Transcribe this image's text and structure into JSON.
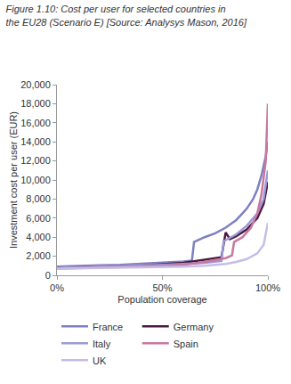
{
  "chart_data": {
    "type": "line",
    "title": "Figure 1.10: Cost per user for selected countries in the EU28 (Scenario E) [Source: Analysys Mason, 2016]",
    "x_label": "Population coverage",
    "y_label": "Investment cost per user (EUR)",
    "xlim": [
      0,
      100
    ],
    "xticks": [
      {
        "value": 0,
        "label": "0%"
      },
      {
        "value": 50,
        "label": "50%"
      },
      {
        "value": 100,
        "label": "100%"
      }
    ],
    "ylim": [
      0,
      20000
    ],
    "yticks": [
      0,
      {
        "value": 2000,
        "label": "2,000"
      },
      {
        "value": 4000,
        "label": "4,000"
      },
      {
        "value": 6000,
        "label": "6,000"
      },
      {
        "value": 8000,
        "label": "8,000"
      },
      {
        "value": 10000,
        "label": "10,000"
      },
      {
        "value": 12000,
        "label": "12,000"
      },
      {
        "value": 14000,
        "label": "14,000"
      },
      {
        "value": 16000,
        "label": "16,000"
      },
      {
        "value": 18000,
        "label": "18,000"
      },
      {
        "value": 20000,
        "label": "20,000"
      }
    ],
    "grid": false,
    "legend": "bottom",
    "series": [
      {
        "name": "France",
        "color": "#7f80c2",
        "x": [
          0,
          10,
          20,
          30,
          40,
          50,
          60,
          64,
          65,
          70,
          75,
          80,
          85,
          88,
          90,
          93,
          95,
          97,
          99,
          100
        ],
        "values": [
          900,
          1000,
          1050,
          1100,
          1200,
          1300,
          1450,
          1550,
          3500,
          4000,
          4400,
          5000,
          5800,
          6500,
          7000,
          8000,
          9000,
          10500,
          12500,
          14000
        ]
      },
      {
        "name": "Germany",
        "color": "#4a1942",
        "x": [
          0,
          20,
          40,
          60,
          70,
          78,
          80,
          82,
          85,
          90,
          95,
          98,
          100
        ],
        "values": [
          800,
          900,
          1000,
          1300,
          1600,
          1900,
          4500,
          3800,
          4100,
          4800,
          6000,
          7500,
          9800
        ]
      },
      {
        "name": "Italy",
        "color": "#9b9ad6",
        "x": [
          0,
          10,
          20,
          30,
          40,
          50,
          60,
          70,
          78,
          79,
          80,
          85,
          90,
          95,
          98,
          100
        ],
        "values": [
          800,
          850,
          900,
          950,
          1000,
          1100,
          1200,
          1300,
          1500,
          3500,
          3700,
          4300,
          5200,
          6500,
          8000,
          11000
        ]
      },
      {
        "name": "Spain",
        "color": "#c8789f",
        "x": [
          0,
          20,
          40,
          60,
          70,
          80,
          83,
          84,
          88,
          92,
          95,
          97,
          99,
          100
        ],
        "values": [
          700,
          800,
          900,
          1100,
          1400,
          1800,
          2100,
          3500,
          4000,
          5000,
          6500,
          8500,
          12000,
          18000
        ]
      },
      {
        "name": "UK",
        "color": "#c5bde8",
        "x": [
          0,
          20,
          40,
          60,
          70,
          80,
          85,
          90,
          95,
          98,
          100
        ],
        "values": [
          700,
          750,
          800,
          900,
          1000,
          1200,
          1400,
          1700,
          2300,
          3200,
          5500
        ]
      }
    ]
  }
}
